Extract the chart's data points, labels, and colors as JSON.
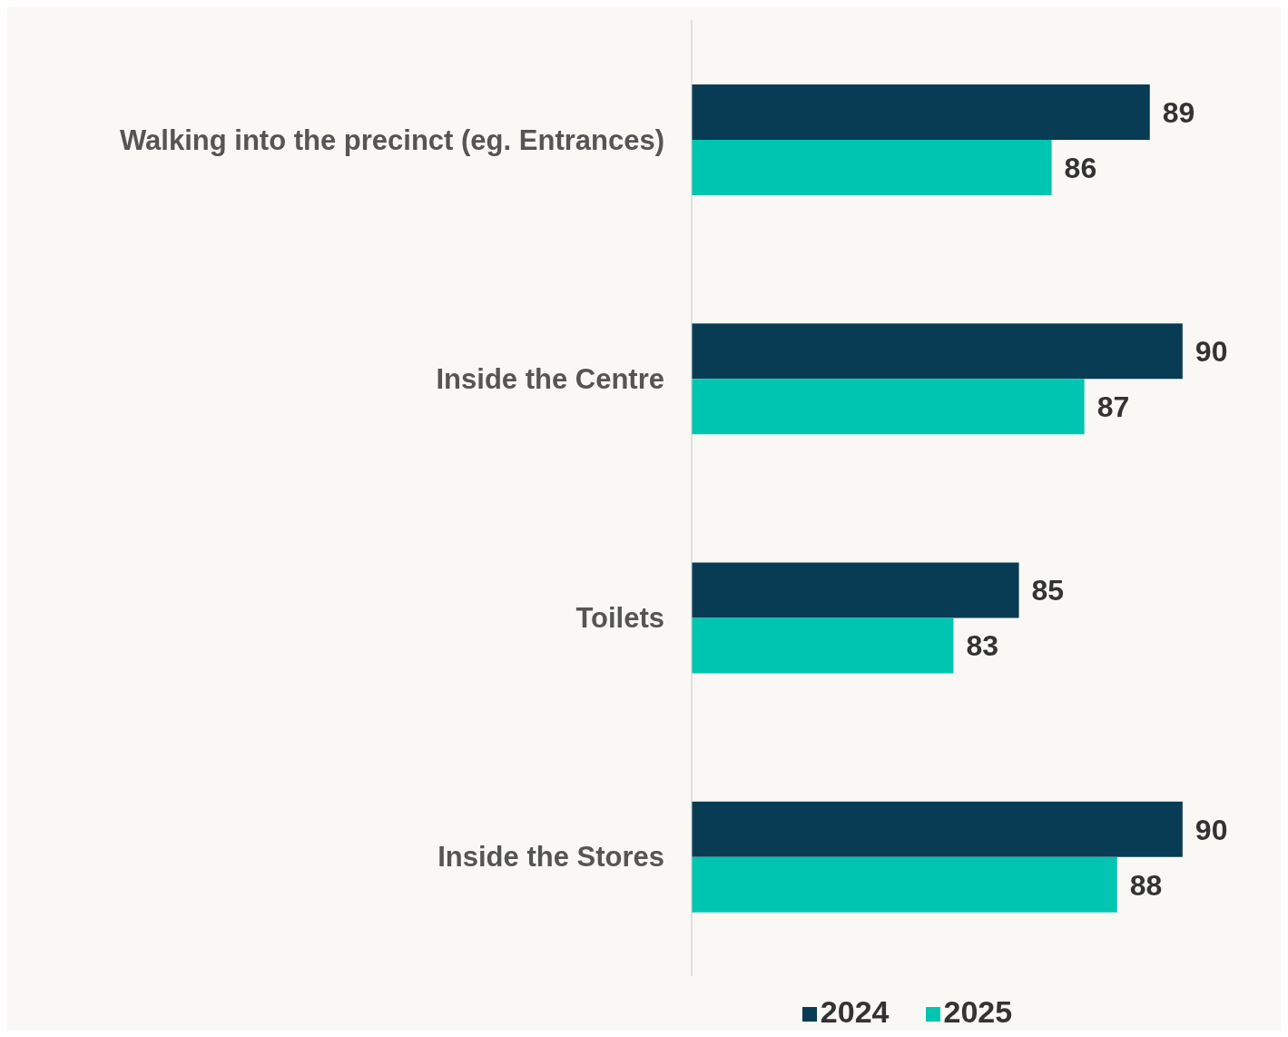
{
  "chart_data": {
    "type": "bar",
    "orientation": "horizontal",
    "categories": [
      "Walking into the precinct (eg. Entrances)",
      "Inside the Centre",
      "Toilets",
      "Inside the Stores"
    ],
    "series": [
      {
        "name": "2024",
        "color": "#083c55",
        "values": [
          89,
          90,
          85,
          90
        ]
      },
      {
        "name": "2025",
        "color": "#00c5b0",
        "values": [
          86,
          87,
          83,
          88
        ]
      }
    ],
    "xlim": [
      75,
      93
    ],
    "tick_labels": "y",
    "data_labels": true,
    "legend": "bottom",
    "grid": false
  }
}
